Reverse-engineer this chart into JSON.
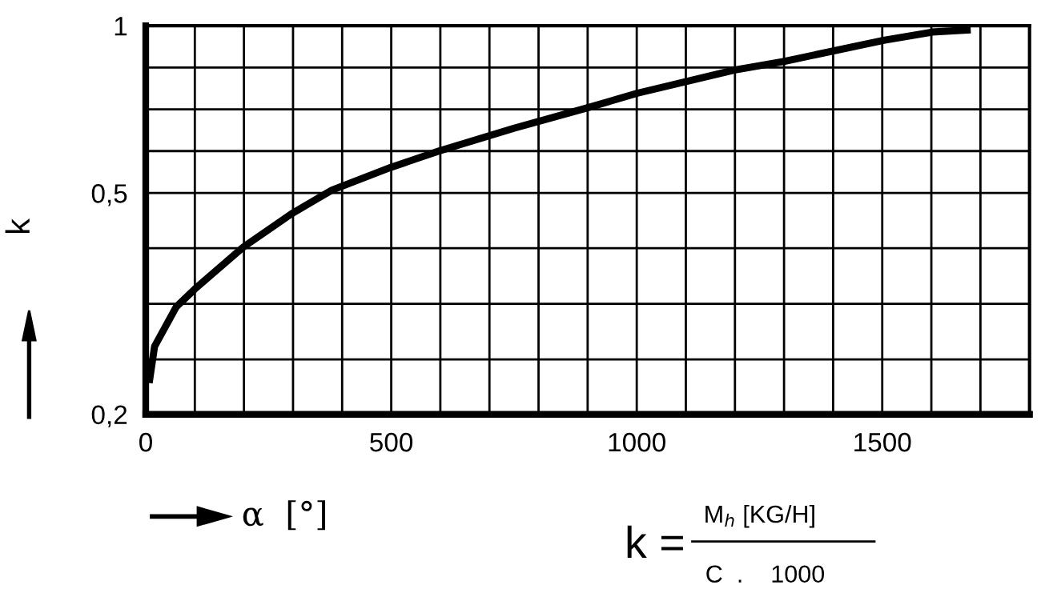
{
  "chart_data": {
    "type": "line",
    "xlabel": "α  [°]",
    "ylabel": "k",
    "x": [
      8,
      18,
      62,
      100,
      199,
      297,
      379,
      499,
      597,
      750,
      903,
      1001,
      1198,
      1301,
      1503,
      1602,
      1673
    ],
    "series": [
      {
        "color": "#000000",
        "values": [
          0.231,
          0.265,
          0.312,
          0.336,
          0.4,
          0.459,
          0.506,
          0.556,
          0.595,
          0.654,
          0.713,
          0.756,
          0.832,
          0.863,
          0.941,
          0.974,
          0.982
        ]
      }
    ],
    "xlim": [
      0,
      1800
    ],
    "xticks": [
      0,
      {
        "value": 100,
        "label": null
      },
      {
        "value": 200,
        "label": null
      },
      {
        "value": 300,
        "label": null
      },
      {
        "value": 400,
        "label": null
      },
      500,
      {
        "value": 600,
        "label": null
      },
      {
        "value": 700,
        "label": null
      },
      {
        "value": 800,
        "label": null
      },
      {
        "value": 900,
        "label": null
      },
      1000,
      {
        "value": 1100,
        "label": null
      },
      {
        "value": 1200,
        "label": null
      },
      {
        "value": 1300,
        "label": null
      },
      {
        "value": 1400,
        "label": null
      },
      1500,
      {
        "value": 1600,
        "label": null
      },
      {
        "value": 1700,
        "label": null
      }
    ],
    "ylim": [
      0.2,
      1
    ],
    "yticks": [
      {
        "value": 0.2,
        "label": "0,2"
      },
      {
        "value": 0.251,
        "label": null
      },
      {
        "value": 0.316,
        "label": null
      },
      {
        "value": 0.398,
        "label": null
      },
      {
        "value": 0.5,
        "label": "0,5"
      },
      {
        "value": 0.595,
        "label": null
      },
      {
        "value": 0.707,
        "label": null
      },
      {
        "value": 0.841,
        "label": null
      },
      {
        "value": 1,
        "label": "1"
      }
    ],
    "log": true,
    "grid": true,
    "marker": "none",
    "line_style": "solid",
    "legend": false,
    "annotations": [
      "k =",
      "M$_{h}$ [KG/H]",
      "C  .    1000"
    ]
  }
}
